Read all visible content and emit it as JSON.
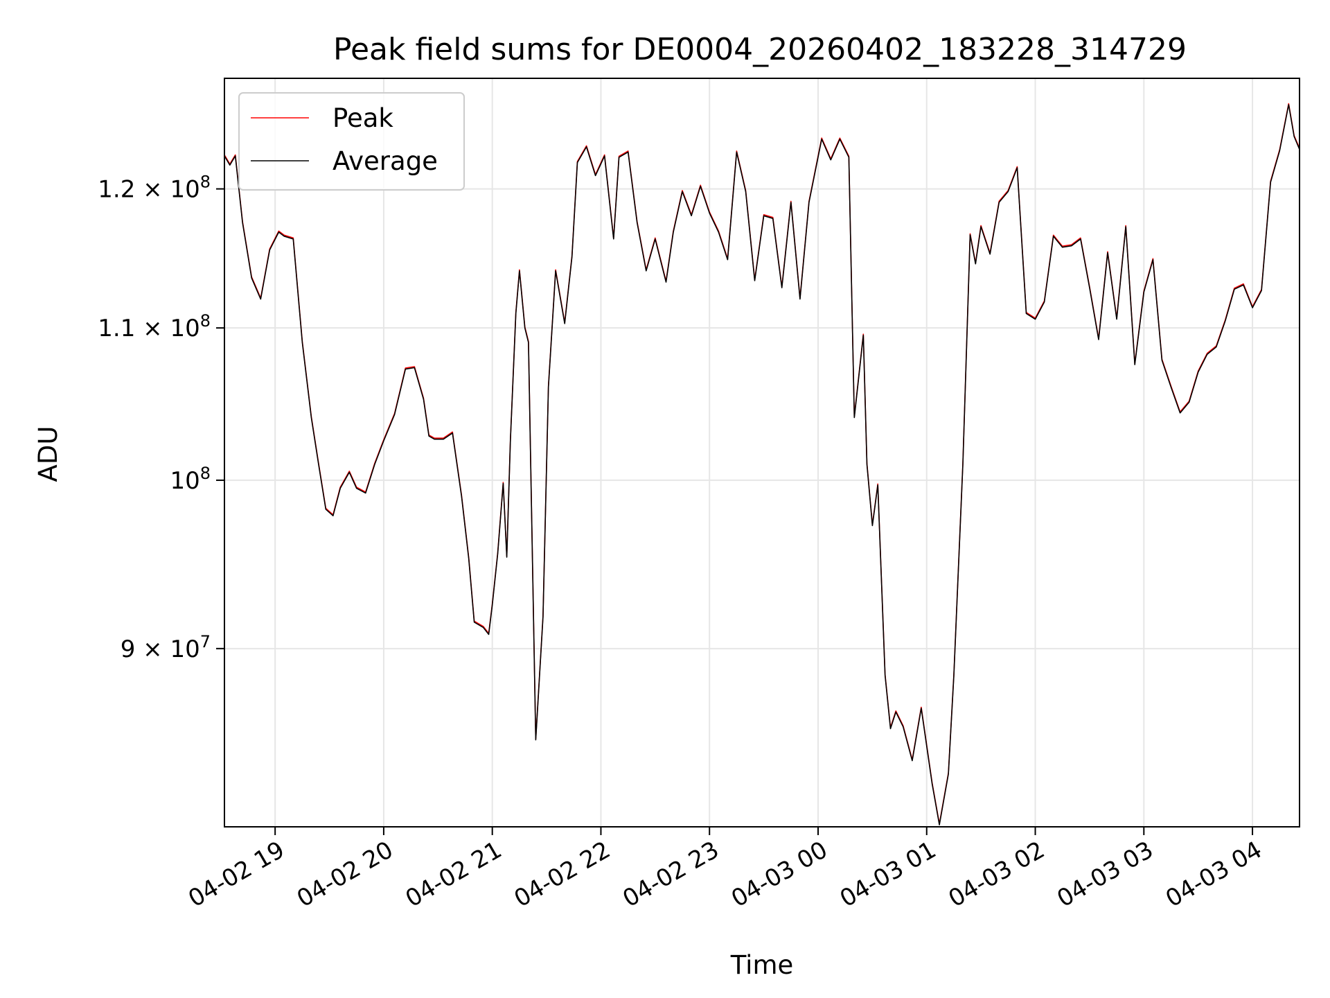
{
  "chart_data": {
    "type": "line",
    "title": "Peak field sums for DE0004_20260402_183228_314729",
    "xlabel": "Time",
    "ylabel": "ADU",
    "y_scale": "log",
    "ylim": [
      80500000,
      128600000
    ],
    "xlim": [
      "04-02 18:32",
      "04-03 04:26"
    ],
    "grid": true,
    "legend_position": "upper-left",
    "x_ticks": [
      "04-02 19",
      "04-02 20",
      "04-02 21",
      "04-02 22",
      "04-02 23",
      "04-03 00",
      "04-03 01",
      "04-03 02",
      "04-03 03",
      "04-03 04"
    ],
    "y_ticks": [
      {
        "value": 90000000,
        "mantissa": "9",
        "times": "×",
        "base": "10",
        "exponent": "7"
      },
      {
        "value": 100000000,
        "mantissa": "",
        "times": "",
        "base": "10",
        "exponent": "8"
      },
      {
        "value": 110000000,
        "mantissa": "1.1",
        "times": "×",
        "base": "10",
        "exponent": "8"
      },
      {
        "value": 120000000,
        "mantissa": "1.2",
        "times": "×",
        "base": "10",
        "exponent": "8"
      }
    ],
    "series": [
      {
        "name": "Peak",
        "color": "#ff0000"
      },
      {
        "name": "Average",
        "color": "#000000"
      }
    ],
    "x": [
      "04-02 18:32",
      "04-02 18:35",
      "04-02 18:38",
      "04-02 18:42",
      "04-02 18:47",
      "04-02 18:52",
      "04-02 18:57",
      "04-02 19:02",
      "04-02 19:05",
      "04-02 19:10",
      "04-02 19:15",
      "04-02 19:20",
      "04-02 19:24",
      "04-02 19:28",
      "04-02 19:32",
      "04-02 19:36",
      "04-02 19:41",
      "04-02 19:45",
      "04-02 19:50",
      "04-02 19:55",
      "04-02 20:00",
      "04-02 20:06",
      "04-02 20:12",
      "04-02 20:17",
      "04-02 20:22",
      "04-02 20:25",
      "04-02 20:28",
      "04-02 20:33",
      "04-02 20:38",
      "04-02 20:43",
      "04-02 20:47",
      "04-02 20:50",
      "04-02 20:55",
      "04-02 20:58",
      "04-02 21:00",
      "04-02 21:03",
      "04-02 21:06",
      "04-02 21:08",
      "04-02 21:10",
      "04-02 21:13",
      "04-02 21:15",
      "04-02 21:18",
      "04-02 21:20",
      "04-02 21:24",
      "04-02 21:28",
      "04-02 21:31",
      "04-02 21:35",
      "04-02 21:40",
      "04-02 21:44",
      "04-02 21:47",
      "04-02 21:52",
      "04-02 21:57",
      "04-02 22:02",
      "04-02 22:07",
      "04-02 22:10",
      "04-02 22:15",
      "04-02 22:20",
      "04-02 22:25",
      "04-02 22:30",
      "04-02 22:36",
      "04-02 22:40",
      "04-02 22:45",
      "04-02 22:50",
      "04-02 22:55",
      "04-02 23:00",
      "04-02 23:05",
      "04-02 23:10",
      "04-02 23:15",
      "04-02 23:20",
      "04-02 23:25",
      "04-02 23:30",
      "04-02 23:35",
      "04-02 23:40",
      "04-02 23:45",
      "04-02 23:50",
      "04-02 23:55",
      "04-03 00:02",
      "04-03 00:07",
      "04-03 00:12",
      "04-03 00:17",
      "04-03 00:20",
      "04-03 00:25",
      "04-03 00:27",
      "04-03 00:30",
      "04-03 00:33",
      "04-03 00:37",
      "04-03 00:40",
      "04-03 00:43",
      "04-03 00:47",
      "04-03 00:52",
      "04-03 00:57",
      "04-03 01:03",
      "04-03 01:07",
      "04-03 01:12",
      "04-03 01:15",
      "04-03 01:20",
      "04-03 01:24",
      "04-03 01:27",
      "04-03 01:30",
      "04-03 01:35",
      "04-03 01:40",
      "04-03 01:45",
      "04-03 01:50",
      "04-03 01:55",
      "04-03 02:00",
      "04-03 02:05",
      "04-03 02:10",
      "04-03 02:15",
      "04-03 02:20",
      "04-03 02:25",
      "04-03 02:30",
      "04-03 02:35",
      "04-03 02:40",
      "04-03 02:45",
      "04-03 02:50",
      "04-03 02:55",
      "04-03 03:00",
      "04-03 03:05",
      "04-03 03:10",
      "04-03 03:15",
      "04-03 03:20",
      "04-03 03:25",
      "04-03 03:30",
      "04-03 03:35",
      "04-03 03:40",
      "04-03 03:45",
      "04-03 03:50",
      "04-03 03:55",
      "04-03 04:00",
      "04-03 04:05",
      "04-03 04:10",
      "04-03 04:15",
      "04-03 04:20",
      "04-03 04:23",
      "04-03 04:26"
    ],
    "y_average": [
      122500000,
      121800000,
      122500000,
      117500000,
      113500000,
      112000000,
      115500000,
      116800000,
      116500000,
      116300000,
      109000000,
      104000000,
      101000000,
      98200000,
      97800000,
      99500000,
      100500000,
      99500000,
      99200000,
      101000000,
      102500000,
      104200000,
      107200000,
      107300000,
      105200000,
      102800000,
      102600000,
      102600000,
      103000000,
      99000000,
      95200000,
      91500000,
      91200000,
      90800000,
      92500000,
      95500000,
      99800000,
      95300000,
      102500000,
      111000000,
      114000000,
      110000000,
      109000000,
      85000000,
      91800000,
      106000000,
      114000000,
      110300000,
      115000000,
      122000000,
      123200000,
      121000000,
      122500000,
      116300000,
      122400000,
      122800000,
      117500000,
      114000000,
      116300000,
      113200000,
      116800000,
      119800000,
      118000000,
      120200000,
      118200000,
      116800000,
      114800000,
      122800000,
      119800000,
      113300000,
      118000000,
      117800000,
      112800000,
      119000000,
      112000000,
      119000000,
      123800000,
      122200000,
      123800000,
      122400000,
      104000000,
      109500000,
      101000000,
      97200000,
      99700000,
      88500000,
      85600000,
      86500000,
      85700000,
      83900000,
      86700000,
      82700000,
      80600000,
      83200000,
      88500000,
      101000000,
      116600000,
      114500000,
      117200000,
      115200000,
      119000000,
      119800000,
      121600000,
      111000000,
      110600000,
      111800000,
      116500000,
      115700000,
      115800000,
      116300000,
      112800000,
      109200000,
      115300000,
      110600000,
      117200000,
      107500000,
      112500000,
      114800000,
      107800000,
      106000000,
      104300000,
      105000000,
      107000000,
      108200000,
      108700000,
      110500000,
      112700000,
      113000000,
      111400000,
      112600000,
      120500000,
      122900000,
      126500000,
      124000000,
      123000000
    ]
  },
  "legend": {
    "peak_label": "Peak",
    "average_label": "Average"
  }
}
